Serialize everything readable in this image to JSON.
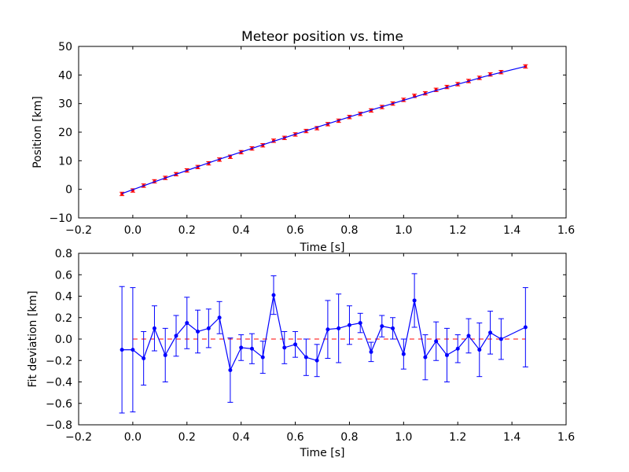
{
  "chart_data": [
    {
      "type": "scatter",
      "title": "Meteor position vs. time",
      "xlabel": "Time [s]",
      "ylabel": "Position [km]",
      "xlim": [
        -0.2,
        1.6
      ],
      "ylim": [
        -10,
        50
      ],
      "xticks": [
        -0.2,
        0.0,
        0.2,
        0.4,
        0.6,
        0.8,
        1.0,
        1.2,
        1.4,
        1.6
      ],
      "yticks": [
        -10,
        0,
        10,
        20,
        30,
        40,
        50
      ],
      "xtick_labels": [
        "−0.2",
        "0.0",
        "0.2",
        "0.4",
        "0.6",
        "0.8",
        "1.0",
        "1.2",
        "1.4",
        "1.6"
      ],
      "ytick_labels": [
        "−10",
        "0",
        "10",
        "20",
        "30",
        "40",
        "50"
      ],
      "grid": false,
      "series": [
        {
          "kind": "errorbar-points",
          "color": "#ff0000",
          "x": [
            -0.04,
            0.0,
            0.04,
            0.08,
            0.12,
            0.16,
            0.2,
            0.24,
            0.28,
            0.32,
            0.36,
            0.4,
            0.44,
            0.48,
            0.52,
            0.56,
            0.6,
            0.64,
            0.68,
            0.72,
            0.76,
            0.8,
            0.84,
            0.88,
            0.92,
            0.96,
            1.0,
            1.04,
            1.08,
            1.12,
            1.16,
            1.2,
            1.24,
            1.28,
            1.32,
            1.36,
            1.45
          ],
          "y": [
            -1.6,
            -0.4,
            1.3,
            2.8,
            4.0,
            5.3,
            6.6,
            7.8,
            9.1,
            10.4,
            11.4,
            13.0,
            14.3,
            15.4,
            17.0,
            18.0,
            19.2,
            20.4,
            21.4,
            22.8,
            24.0,
            25.3,
            26.4,
            27.6,
            28.8,
            30.0,
            31.3,
            32.7,
            33.6,
            34.8,
            35.8,
            36.8,
            37.9,
            39.0,
            40.2,
            41.0,
            43.0
          ],
          "yerr": 0.6
        },
        {
          "kind": "line",
          "color": "#0000ff",
          "x": [
            -0.04,
            0.1,
            0.3,
            0.5,
            0.7,
            0.9,
            1.1,
            1.3,
            1.45
          ],
          "y": [
            -1.5,
            3.3,
            9.9,
            16.2,
            22.3,
            28.3,
            34.0,
            39.5,
            43.0
          ]
        }
      ]
    },
    {
      "type": "line",
      "xlabel": "Time [s]",
      "ylabel": "Fit deviation [km]",
      "xlim": [
        -0.2,
        1.6
      ],
      "ylim": [
        -0.8,
        0.8
      ],
      "xticks": [
        -0.2,
        0.0,
        0.2,
        0.4,
        0.6,
        0.8,
        1.0,
        1.2,
        1.4,
        1.6
      ],
      "yticks": [
        -0.8,
        -0.6,
        -0.4,
        -0.2,
        0.0,
        0.2,
        0.4,
        0.6,
        0.8
      ],
      "xtick_labels": [
        "−0.2",
        "0.0",
        "0.2",
        "0.4",
        "0.6",
        "0.8",
        "1.0",
        "1.2",
        "1.4",
        "1.6"
      ],
      "ytick_labels": [
        "−0.8",
        "−0.6",
        "−0.4",
        "−0.2",
        "0.0",
        "0.2",
        "0.4",
        "0.6",
        "0.8"
      ],
      "grid": false,
      "reference_line": {
        "y": 0.0,
        "color": "#ff0000",
        "style": "dashed"
      },
      "series": [
        {
          "kind": "errorbar-line",
          "color": "#0000ff",
          "x": [
            -0.04,
            0.0,
            0.04,
            0.08,
            0.12,
            0.16,
            0.2,
            0.24,
            0.28,
            0.32,
            0.36,
            0.4,
            0.44,
            0.48,
            0.52,
            0.56,
            0.6,
            0.64,
            0.68,
            0.72,
            0.76,
            0.8,
            0.84,
            0.88,
            0.92,
            0.96,
            1.0,
            1.04,
            1.08,
            1.12,
            1.16,
            1.2,
            1.24,
            1.28,
            1.32,
            1.36,
            1.45
          ],
          "y": [
            -0.1,
            -0.1,
            -0.18,
            0.1,
            -0.15,
            0.03,
            0.15,
            0.07,
            0.1,
            0.2,
            -0.29,
            -0.08,
            -0.09,
            -0.17,
            0.41,
            -0.08,
            -0.05,
            -0.17,
            -0.2,
            0.09,
            0.1,
            0.13,
            0.15,
            -0.12,
            0.12,
            0.1,
            -0.14,
            0.36,
            -0.17,
            -0.02,
            -0.15,
            -0.09,
            0.03,
            -0.1,
            0.06,
            0.0,
            0.11
          ],
          "yerr": [
            0.59,
            0.58,
            0.25,
            0.21,
            0.25,
            0.19,
            0.24,
            0.2,
            0.18,
            0.15,
            0.3,
            0.12,
            0.14,
            0.15,
            0.18,
            0.15,
            0.12,
            0.17,
            0.15,
            0.27,
            0.32,
            0.18,
            0.09,
            0.09,
            0.1,
            0.1,
            0.14,
            0.25,
            0.21,
            0.18,
            0.25,
            0.13,
            0.16,
            0.25,
            0.2,
            0.19,
            0.37
          ]
        }
      ]
    }
  ]
}
